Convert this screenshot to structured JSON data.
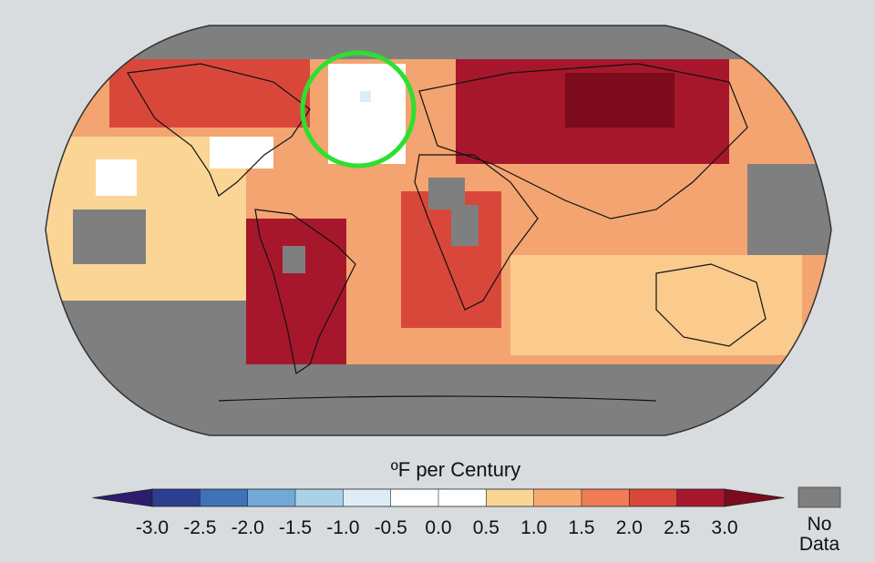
{
  "colorbar": {
    "label": "ºF per Century",
    "ticks": [
      {
        "value": -3,
        "label": "-3.0"
      },
      {
        "value": -2.5,
        "label": "-2.5"
      },
      {
        "value": -2,
        "label": "-2.0"
      },
      {
        "value": -1.5,
        "label": "-1.5"
      },
      {
        "value": -1,
        "label": "-1.0"
      },
      {
        "value": -0.5,
        "label": "-0.5"
      },
      {
        "value": 0,
        "label": "0.0"
      },
      {
        "value": 0.5,
        "label": "0.5"
      },
      {
        "value": 1,
        "label": "1.0"
      },
      {
        "value": 1.5,
        "label": "1.5"
      },
      {
        "value": 2,
        "label": "2.0"
      },
      {
        "value": 2.5,
        "label": "2.5"
      },
      {
        "value": 3,
        "label": "3.0"
      }
    ],
    "colors": [
      "#2c1d6e",
      "#2c3f92",
      "#3f72b6",
      "#72a9d8",
      "#a9d2ea",
      "#dcedf6",
      "#ffffff",
      "#ffffff",
      "#fbd595",
      "#f8ab70",
      "#ef7d55",
      "#d9473b",
      "#a7172c",
      "#7b0b1d"
    ],
    "no_data": {
      "lines": [
        "No",
        "Data"
      ],
      "color": "#7f7f7f"
    }
  }
}
